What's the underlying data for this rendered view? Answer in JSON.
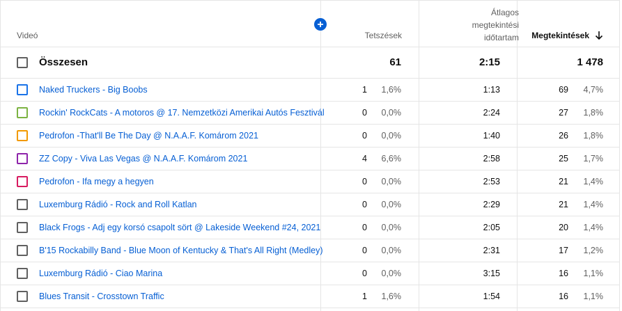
{
  "headers": {
    "video": "Videó",
    "likes": "Tetszések",
    "avg_view_duration_line1": "Átlagos",
    "avg_view_duration_line2": "megtekintési",
    "avg_view_duration_line3": "időtartam",
    "views": "Megtekintések"
  },
  "totals": {
    "label": "Összesen",
    "likes": "61",
    "avg_duration": "2:15",
    "views": "1 478"
  },
  "colors": {
    "link": "#065fd4",
    "add_button": "#065fd4"
  },
  "rows": [
    {
      "title": "Naked Truckers - Big Boobs",
      "likes": "1",
      "likes_pct": "1,6%",
      "duration": "1:13",
      "views": "69",
      "views_pct": "4,7%",
      "color": "#1a73e8"
    },
    {
      "title": "Rockin' RockCats - A motoros @ 17. Nemzetközi Amerikai Autós Fesztivál",
      "likes": "0",
      "likes_pct": "0,0%",
      "duration": "2:24",
      "views": "27",
      "views_pct": "1,8%",
      "color": "#7cb342"
    },
    {
      "title": "Pedrofon -That'll Be The Day @ N.A.A.F. Komárom 2021",
      "likes": "0",
      "likes_pct": "0,0%",
      "duration": "1:40",
      "views": "26",
      "views_pct": "1,8%",
      "color": "#f29900"
    },
    {
      "title": "ZZ Copy - Viva Las Vegas @ N.A.A.F. Komárom 2021",
      "likes": "4",
      "likes_pct": "6,6%",
      "duration": "2:58",
      "views": "25",
      "views_pct": "1,7%",
      "color": "#8e24aa"
    },
    {
      "title": "Pedrofon - Ifa megy a hegyen",
      "likes": "0",
      "likes_pct": "0,0%",
      "duration": "2:53",
      "views": "21",
      "views_pct": "1,4%",
      "color": "#d81b60"
    },
    {
      "title": "Luxemburg Rádió - Rock and Roll Katlan",
      "likes": "0",
      "likes_pct": "0,0%",
      "duration": "2:29",
      "views": "21",
      "views_pct": "1,4%",
      "color": "#606060"
    },
    {
      "title": "Black Frogs - Adj egy korsó csapolt sört @ Lakeside Weekend #24, 2021",
      "likes": "0",
      "likes_pct": "0,0%",
      "duration": "2:05",
      "views": "20",
      "views_pct": "1,4%",
      "color": "#606060"
    },
    {
      "title": "B'15 Rockabilly Band - Blue Moon of Kentucky & That's All Right (Medley)",
      "likes": "0",
      "likes_pct": "0,0%",
      "duration": "2:31",
      "views": "17",
      "views_pct": "1,2%",
      "color": "#606060"
    },
    {
      "title": "Luxemburg Rádió - Ciao Marina",
      "likes": "0",
      "likes_pct": "0,0%",
      "duration": "3:15",
      "views": "16",
      "views_pct": "1,1%",
      "color": "#606060"
    },
    {
      "title": "Blues Transit - Crosstown Traffic",
      "likes": "1",
      "likes_pct": "1,6%",
      "duration": "1:54",
      "views": "16",
      "views_pct": "1,1%",
      "color": "#606060"
    }
  ]
}
